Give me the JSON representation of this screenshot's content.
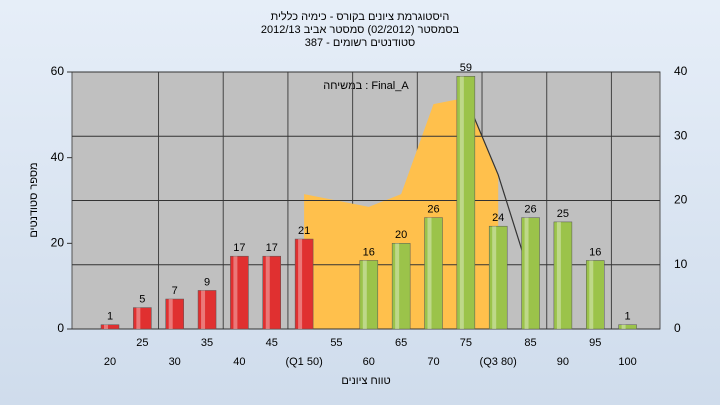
{
  "chart_data": {
    "type": "bar",
    "title": [
      "היסטוגרמת ציונים בקורס - כימיה כללית",
      "בסמסטר  (02/2012)  סמסטר אביב 2012/13",
      "סטודנטים רשומים - 387"
    ],
    "annotation": "במשיחה : Final_A",
    "y_label": "מספר סטודנטים",
    "x_label": "טווח ציונים",
    "categories": [
      "20",
      "25",
      "30",
      "35",
      "40",
      "45",
      "(Q1 50)",
      "55",
      "60",
      "65",
      "70",
      "75",
      "(Q3 80)",
      "85",
      "90",
      "95",
      "100"
    ],
    "values": [
      1,
      5,
      7,
      9,
      17,
      17,
      21,
      null,
      16,
      20,
      26,
      59,
      24,
      26,
      25,
      16,
      1
    ],
    "colors": [
      "#e03030",
      "#e03030",
      "#e03030",
      "#e03030",
      "#e03030",
      "#e03030",
      "#e03030",
      "#e03030",
      "#9bc34a",
      "#9bc34a",
      "#9bc34a",
      "#9bc34a",
      "#9bc34a",
      "#9bc34a",
      "#9bc34a",
      "#9bc34a",
      "#9bc34a"
    ],
    "ylim": [
      0,
      60
    ],
    "yticks": [
      0,
      20,
      40,
      60
    ],
    "y2lim": [
      0,
      40
    ],
    "y2ticks": [
      0,
      10,
      20,
      30,
      40
    ],
    "area": {
      "color": "#ffc04c",
      "axis": "y2",
      "values": [
        null,
        null,
        null,
        null,
        null,
        null,
        21,
        20,
        19,
        21,
        35,
        36,
        24,
        null,
        null,
        null,
        null
      ]
    },
    "line": {
      "color": "#333333",
      "axis": "y2",
      "values": [
        null,
        null,
        null,
        null,
        null,
        null,
        null,
        null,
        null,
        null,
        null,
        36,
        24,
        8,
        null,
        null,
        null
      ]
    }
  }
}
